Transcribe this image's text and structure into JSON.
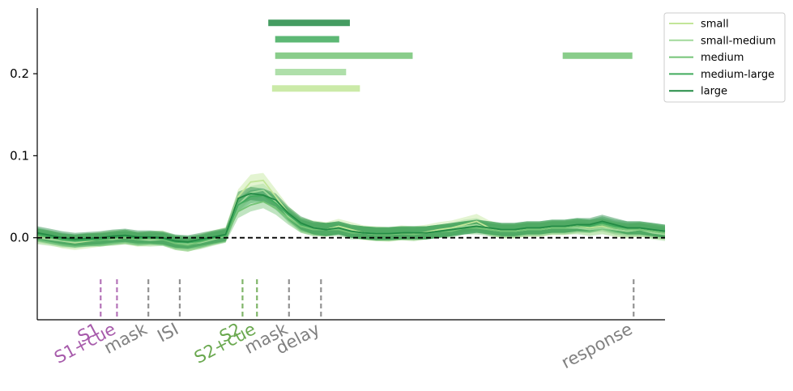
{
  "chart_data": {
    "type": "line",
    "title": "",
    "xlabel": "",
    "ylabel": "",
    "xlim": [
      0,
      100
    ],
    "ylim": [
      -0.1,
      0.28
    ],
    "grid": false,
    "legend_position": "top-right",
    "y_ticks": [
      {
        "value": 0.0,
        "label": "0.0"
      },
      {
        "value": 0.1,
        "label": "0.1"
      },
      {
        "value": 0.2,
        "label": "0.2"
      }
    ],
    "reference_line": {
      "y": 0.0,
      "style": "dashed",
      "color": "#000000"
    },
    "series": [
      {
        "name": "small",
        "color": "#c2e699",
        "x": [
          0,
          2,
          4,
          6,
          8,
          10,
          12,
          14,
          16,
          18,
          20,
          22,
          24,
          26,
          28,
          30,
          32,
          34,
          36,
          38,
          40,
          42,
          44,
          46,
          48,
          50,
          52,
          54,
          56,
          58,
          60,
          62,
          64,
          66,
          68,
          70,
          72,
          74,
          76,
          78,
          80,
          82,
          84,
          86,
          88,
          90,
          92,
          94,
          96,
          98,
          100
        ],
        "values": [
          0.002,
          0.0,
          -0.004,
          -0.006,
          -0.004,
          -0.002,
          0.0,
          0.001,
          -0.002,
          -0.001,
          0.0,
          -0.006,
          -0.008,
          -0.004,
          0.0,
          0.004,
          0.05,
          0.068,
          0.07,
          0.05,
          0.03,
          0.016,
          0.012,
          0.01,
          0.014,
          0.01,
          0.006,
          0.005,
          0.004,
          0.006,
          0.005,
          0.007,
          0.01,
          0.012,
          0.016,
          0.02,
          0.012,
          0.008,
          0.008,
          0.01,
          0.01,
          0.012,
          0.012,
          0.014,
          0.012,
          0.014,
          0.01,
          0.008,
          0.01,
          0.008,
          0.006
        ],
        "ci": 0.009
      },
      {
        "name": "small-medium",
        "color": "#a1d99b",
        "x": [
          0,
          2,
          4,
          6,
          8,
          10,
          12,
          14,
          16,
          18,
          20,
          22,
          24,
          26,
          28,
          30,
          32,
          34,
          36,
          38,
          40,
          42,
          44,
          46,
          48,
          50,
          52,
          54,
          56,
          58,
          60,
          62,
          64,
          66,
          68,
          70,
          72,
          74,
          76,
          78,
          80,
          82,
          84,
          86,
          88,
          90,
          92,
          94,
          96,
          98,
          100
        ],
        "values": [
          0.0,
          -0.002,
          -0.004,
          -0.005,
          -0.003,
          -0.002,
          -0.002,
          0.0,
          -0.002,
          -0.003,
          -0.002,
          -0.006,
          -0.008,
          -0.006,
          -0.002,
          0.002,
          0.04,
          0.055,
          0.058,
          0.044,
          0.026,
          0.014,
          0.01,
          0.01,
          0.012,
          0.008,
          0.006,
          0.004,
          0.004,
          0.005,
          0.006,
          0.006,
          0.008,
          0.01,
          0.014,
          0.016,
          0.01,
          0.008,
          0.008,
          0.01,
          0.01,
          0.012,
          0.012,
          0.012,
          0.01,
          0.012,
          0.01,
          0.008,
          0.01,
          0.006,
          0.004
        ],
        "ci": 0.008
      },
      {
        "name": "medium",
        "color": "#74c476",
        "x": [
          0,
          2,
          4,
          6,
          8,
          10,
          12,
          14,
          16,
          18,
          20,
          22,
          24,
          26,
          28,
          30,
          32,
          34,
          36,
          38,
          40,
          42,
          44,
          46,
          48,
          50,
          52,
          54,
          56,
          58,
          60,
          62,
          64,
          66,
          68,
          70,
          72,
          74,
          76,
          78,
          80,
          82,
          84,
          86,
          88,
          90,
          92,
          94,
          96,
          98,
          100
        ],
        "values": [
          0.003,
          0.0,
          -0.003,
          -0.004,
          -0.002,
          -0.003,
          -0.001,
          0.0,
          -0.002,
          -0.001,
          -0.002,
          -0.007,
          -0.009,
          -0.005,
          -0.001,
          0.002,
          0.032,
          0.04,
          0.044,
          0.036,
          0.024,
          0.014,
          0.01,
          0.01,
          0.01,
          0.006,
          0.006,
          0.004,
          0.004,
          0.005,
          0.004,
          0.006,
          0.008,
          0.008,
          0.012,
          0.012,
          0.01,
          0.008,
          0.008,
          0.01,
          0.01,
          0.012,
          0.012,
          0.014,
          0.014,
          0.016,
          0.012,
          0.01,
          0.01,
          0.008,
          0.006
        ],
        "ci": 0.008
      },
      {
        "name": "medium-large",
        "color": "#41ab5d",
        "x": [
          0,
          2,
          4,
          6,
          8,
          10,
          12,
          14,
          16,
          18,
          20,
          22,
          24,
          26,
          28,
          30,
          32,
          34,
          36,
          38,
          40,
          42,
          44,
          46,
          48,
          50,
          52,
          54,
          56,
          58,
          60,
          62,
          64,
          66,
          68,
          70,
          72,
          74,
          76,
          78,
          80,
          82,
          84,
          86,
          88,
          90,
          92,
          94,
          96,
          98,
          100
        ],
        "values": [
          0.004,
          0.001,
          -0.002,
          -0.004,
          -0.003,
          -0.002,
          0.0,
          0.002,
          -0.001,
          0.0,
          -0.001,
          -0.005,
          -0.006,
          -0.004,
          0.0,
          0.003,
          0.04,
          0.05,
          0.052,
          0.042,
          0.028,
          0.016,
          0.012,
          0.01,
          0.012,
          0.008,
          0.006,
          0.005,
          0.005,
          0.006,
          0.006,
          0.006,
          0.008,
          0.01,
          0.012,
          0.014,
          0.012,
          0.01,
          0.01,
          0.012,
          0.012,
          0.014,
          0.014,
          0.016,
          0.014,
          0.018,
          0.014,
          0.012,
          0.012,
          0.01,
          0.008
        ],
        "ci": 0.008
      },
      {
        "name": "large",
        "color": "#238b45",
        "x": [
          0,
          2,
          4,
          6,
          8,
          10,
          12,
          14,
          16,
          18,
          20,
          22,
          24,
          26,
          28,
          30,
          32,
          34,
          36,
          38,
          40,
          42,
          44,
          46,
          48,
          50,
          52,
          54,
          56,
          58,
          60,
          62,
          64,
          66,
          68,
          70,
          72,
          74,
          76,
          78,
          80,
          82,
          84,
          86,
          88,
          90,
          92,
          94,
          96,
          98,
          100
        ],
        "values": [
          0.006,
          0.003,
          0.0,
          -0.002,
          -0.001,
          0.0,
          0.002,
          0.003,
          0.001,
          0.001,
          0.0,
          -0.004,
          -0.005,
          -0.002,
          0.001,
          0.004,
          0.048,
          0.054,
          0.052,
          0.046,
          0.03,
          0.018,
          0.012,
          0.01,
          0.012,
          0.008,
          0.006,
          0.005,
          0.005,
          0.006,
          0.006,
          0.006,
          0.008,
          0.01,
          0.012,
          0.014,
          0.012,
          0.01,
          0.01,
          0.012,
          0.012,
          0.014,
          0.014,
          0.016,
          0.016,
          0.02,
          0.016,
          0.012,
          0.012,
          0.01,
          0.008
        ],
        "ci": 0.008
      }
    ],
    "significance_bars": [
      {
        "series": "large",
        "y": 0.262,
        "segments": [
          [
            36.8,
            49.8
          ]
        ]
      },
      {
        "series": "medium-large",
        "y": 0.242,
        "segments": [
          [
            37.9,
            48.1
          ]
        ]
      },
      {
        "series": "medium",
        "y": 0.222,
        "segments": [
          [
            37.9,
            59.8
          ],
          [
            83.7,
            94.8
          ]
        ]
      },
      {
        "series": "small-medium",
        "y": 0.202,
        "segments": [
          [
            37.9,
            49.2
          ]
        ]
      },
      {
        "series": "small",
        "y": 0.182,
        "segments": [
          [
            37.4,
            51.4
          ]
        ]
      }
    ],
    "events": [
      {
        "x": 10.1,
        "label": "S1",
        "color": "#a75bab"
      },
      {
        "x": 12.7,
        "label": "S1+cue",
        "color": "#a75bab"
      },
      {
        "x": 17.7,
        "label": "mask",
        "color": "#808080"
      },
      {
        "x": 22.7,
        "label": "ISI",
        "color": "#808080"
      },
      {
        "x": 32.7,
        "label": "S2",
        "color": "#6aa84f"
      },
      {
        "x": 35.0,
        "label": "S2+cue",
        "color": "#6aa84f"
      },
      {
        "x": 40.1,
        "label": "mask",
        "color": "#808080"
      },
      {
        "x": 45.2,
        "label": "delay",
        "color": "#808080"
      },
      {
        "x": 95.0,
        "label": "response",
        "color": "#808080"
      }
    ]
  }
}
